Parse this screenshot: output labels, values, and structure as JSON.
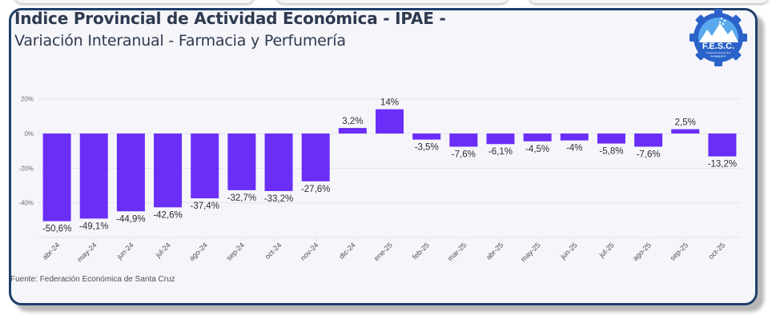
{
  "header": {
    "title": "Índice Provincial de Actividad Económica - IPAE -",
    "subtitle": "Variación Interanual - Farmacia y Perfumería"
  },
  "logo": {
    "text": "F.E.S.C.",
    "caption_line1": "Federación Económica",
    "caption_line2": "de Santa Cruz",
    "icon": "gear-mountain-logo-icon"
  },
  "footer": {
    "source": "Fuente: Federación Económica de Santa Cruz"
  },
  "colors": {
    "bar": "#6a2ef8",
    "frame": "#1f3f6b",
    "logo_blue": "#2a62c9"
  },
  "chart_data": {
    "type": "bar",
    "title": "Índice Provincial de Actividad Económica - IPAE -",
    "subtitle": "Variación Interanual - Farmacia y Perfumería",
    "xlabel": "",
    "ylabel": "",
    "categories": [
      "abr-24",
      "may-24",
      "jun-24",
      "jul-24",
      "ago-24",
      "sep-24",
      "oct-24",
      "nov-24",
      "dic-24",
      "ene-25",
      "feb-25",
      "mar-25",
      "abr-25",
      "may-25",
      "jun-25",
      "jul-25",
      "ago-25",
      "sep-25",
      "oct-25"
    ],
    "values": [
      -50.6,
      -49.1,
      -44.9,
      -42.6,
      -37.4,
      -32.7,
      -33.2,
      -27.6,
      3.2,
      14,
      -3.5,
      -7.6,
      -6.1,
      -4.5,
      -4,
      -5.8,
      -7.6,
      2.5,
      -13.2
    ],
    "data_labels": [
      "-50,6%",
      "-49,1%",
      "-44,9%",
      "-42,6%",
      "-37,4%",
      "-32,7%",
      "-33,2%",
      "-27,6%",
      "3,2%",
      "14%",
      "-3,5%",
      "-7,6%",
      "-6,1%",
      "-4,5%",
      "-4%",
      "-5,8%",
      "-7,6%",
      "2,5%",
      "-13,2%"
    ],
    "yticks": [
      20,
      0,
      -20,
      -40
    ],
    "ytick_labels": [
      "20%",
      "0%",
      "-20%",
      "-40%"
    ],
    "ylim": [
      -60,
      25
    ],
    "grid": true,
    "legend": "none",
    "source": "Fuente: Federación Económica de Santa Cruz"
  }
}
